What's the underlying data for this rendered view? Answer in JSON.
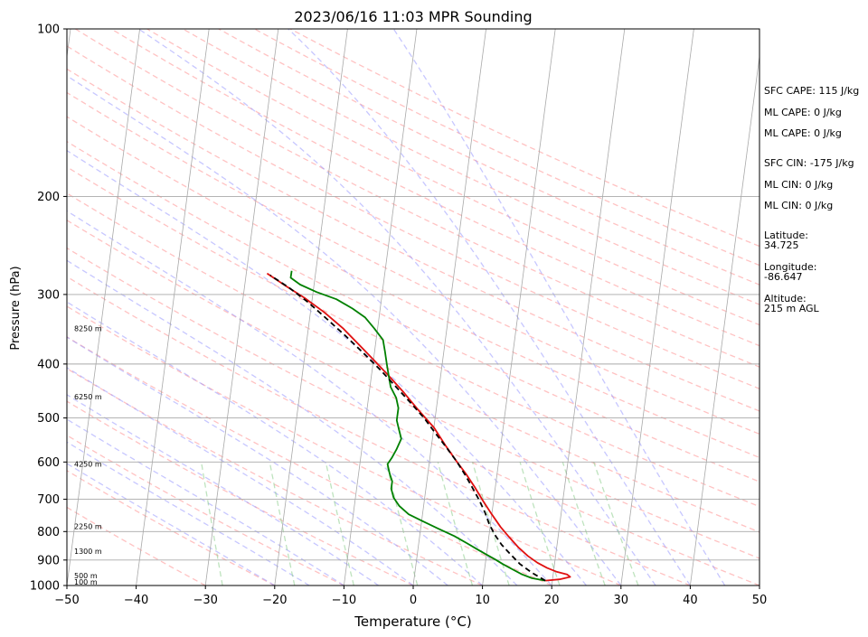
{
  "chart_data": {
    "type": "line",
    "subtype": "skew-t log-p sounding",
    "title": "2023/06/16 11:03 MPR Sounding",
    "xlabel": "Temperature (°C)",
    "ylabel": "Pressure (hPa)",
    "xlim": [
      -50,
      50
    ],
    "ylim": [
      1000,
      100
    ],
    "y_scale": "log",
    "x_ticks": [
      "−50",
      "−40",
      "−30",
      "−20",
      "−10",
      "0",
      "10",
      "20",
      "30",
      "40",
      "50"
    ],
    "y_ticks": [
      {
        "p": 100,
        "label": "100"
      },
      {
        "p": 200,
        "label": "200"
      },
      {
        "p": 300,
        "label": "300"
      },
      {
        "p": 400,
        "label": "400"
      },
      {
        "p": 500,
        "label": "500"
      },
      {
        "p": 600,
        "label": "600"
      },
      {
        "p": 700,
        "label": "700"
      },
      {
        "p": 800,
        "label": "800"
      },
      {
        "p": 900,
        "label": "900"
      },
      {
        "p": 1000,
        "label": "1000"
      }
    ],
    "height_labels": [
      {
        "p": 985,
        "label": "100 m"
      },
      {
        "p": 960,
        "label": "500 m"
      },
      {
        "p": 868,
        "label": "1300 m"
      },
      {
        "p": 783,
        "label": "2250 m"
      },
      {
        "p": 605,
        "label": "4250 m"
      },
      {
        "p": 458,
        "label": "6250 m"
      },
      {
        "p": 345,
        "label": "8250 m"
      }
    ],
    "grid": true,
    "colors": {
      "temperature": "#e01010",
      "dewpoint": "#008000",
      "parcel": "#000000",
      "isotherm": "#a9a9a9",
      "dry_adiabat": "#ff9999",
      "moist_adiabat": "#9999ff",
      "mixing_ratio": "#88cc88",
      "isobar": "#a9a9a9"
    },
    "series": [
      {
        "key": "temperature",
        "style": "solid",
        "points": [
          [
            19,
            980
          ],
          [
            21,
            975
          ],
          [
            22.5,
            965
          ],
          [
            22,
            955
          ],
          [
            20.5,
            945
          ],
          [
            19,
            930
          ],
          [
            17.5,
            910
          ],
          [
            16,
            885
          ],
          [
            14.5,
            855
          ],
          [
            13,
            820
          ],
          [
            11.5,
            785
          ],
          [
            10,
            745
          ],
          [
            8.5,
            705
          ],
          [
            7,
            665
          ],
          [
            5.5,
            630
          ],
          [
            4,
            600
          ],
          [
            2,
            560
          ],
          [
            0,
            520
          ],
          [
            -2.5,
            485
          ],
          [
            -5,
            450
          ],
          [
            -7.5,
            420
          ],
          [
            -10,
            393
          ],
          [
            -12.5,
            368
          ],
          [
            -15,
            345
          ],
          [
            -18,
            323
          ],
          [
            -21,
            305
          ],
          [
            -24,
            290
          ],
          [
            -27,
            275
          ]
        ]
      },
      {
        "key": "dewpoint",
        "style": "solid",
        "points": [
          [
            19,
            980
          ],
          [
            17,
            970
          ],
          [
            15.5,
            955
          ],
          [
            14,
            935
          ],
          [
            12.5,
            915
          ],
          [
            11.5,
            900
          ],
          [
            10,
            880
          ],
          [
            8.5,
            860
          ],
          [
            7,
            840
          ],
          [
            5,
            815
          ],
          [
            2.5,
            790
          ],
          [
            0,
            765
          ],
          [
            -2,
            745
          ],
          [
            -3.5,
            720
          ],
          [
            -4.5,
            695
          ],
          [
            -5,
            670
          ],
          [
            -5,
            650
          ],
          [
            -5.5,
            630
          ],
          [
            -6,
            605
          ],
          [
            -5.5,
            590
          ],
          [
            -5,
            570
          ],
          [
            -4.5,
            545
          ],
          [
            -5,
            525
          ],
          [
            -5.5,
            505
          ],
          [
            -5.5,
            480
          ],
          [
            -6,
            460
          ],
          [
            -7,
            440
          ],
          [
            -7.5,
            420
          ],
          [
            -8,
            400
          ],
          [
            -8.5,
            380
          ],
          [
            -9,
            362
          ],
          [
            -10.5,
            345
          ],
          [
            -12,
            330
          ],
          [
            -14,
            318
          ],
          [
            -16.5,
            306
          ],
          [
            -19.5,
            297
          ],
          [
            -22,
            288
          ],
          [
            -23.5,
            280
          ],
          [
            -23.5,
            272
          ]
        ]
      },
      {
        "key": "parcel",
        "style": "dashed",
        "points": [
          [
            19,
            980
          ],
          [
            17,
            950
          ],
          [
            15,
            915
          ],
          [
            13.5,
            880
          ],
          [
            12,
            845
          ],
          [
            10.8,
            810
          ],
          [
            9.8,
            775
          ],
          [
            9,
            740
          ],
          [
            8,
            705
          ],
          [
            6.8,
            670
          ],
          [
            5.5,
            635
          ],
          [
            4,
            600
          ],
          [
            2.2,
            565
          ],
          [
            0.3,
            532
          ],
          [
            -1.6,
            500
          ],
          [
            -3.8,
            470
          ],
          [
            -6.2,
            440
          ],
          [
            -8.8,
            410
          ],
          [
            -11.5,
            383
          ],
          [
            -14.5,
            356
          ],
          [
            -17.5,
            332
          ],
          [
            -20.5,
            310
          ],
          [
            -23.5,
            292
          ],
          [
            -26.5,
            277
          ]
        ]
      }
    ]
  },
  "info": [
    "SFC CAPE: 115 J/kg",
    "ML CAPE: 0 J/kg",
    "ML CAPE: 0 J/kg",
    "SFC CIN: -175 J/kg",
    "ML CIN: 0 J/kg",
    "ML CIN: 0 J/kg",
    "Latitude:",
    "34.725",
    "Longitude:",
    "-86.647",
    "Altitude:",
    "215 m AGL"
  ]
}
